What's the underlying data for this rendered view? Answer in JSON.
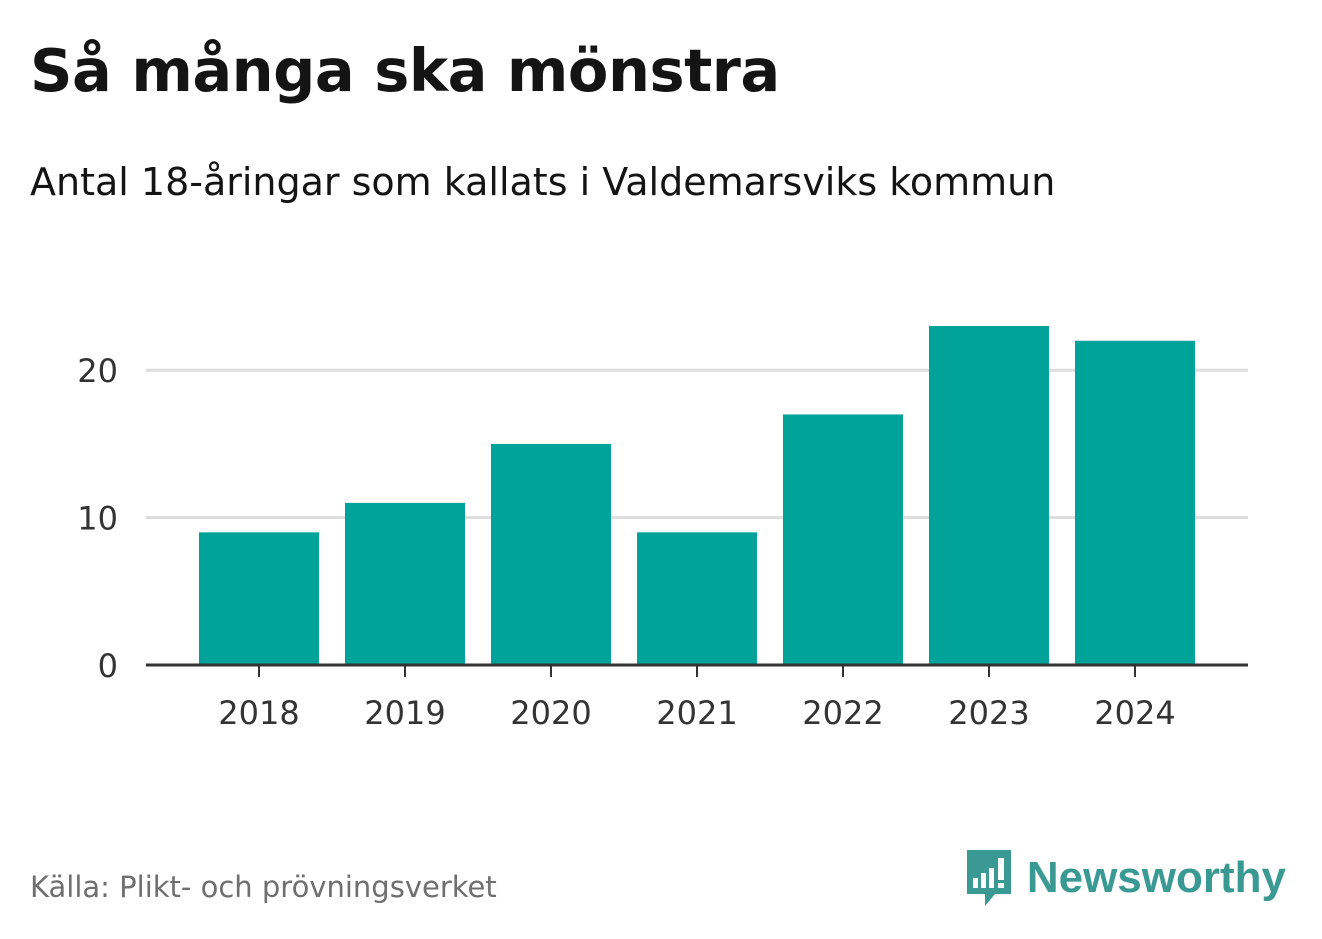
{
  "chart_data": {
    "type": "bar",
    "title": "Så många ska mönstra",
    "subtitle": "Antal 18-åringar som kallats i Valdemarsviks kommun",
    "categories": [
      "2018",
      "2019",
      "2020",
      "2021",
      "2022",
      "2023",
      "2024"
    ],
    "values": [
      9,
      11,
      15,
      9,
      17,
      23,
      22
    ],
    "xlabel": "",
    "ylabel": "",
    "ylim": [
      0,
      23
    ],
    "yticks": [
      0,
      10,
      20
    ],
    "grid": true,
    "bar_color": "#00a39a"
  },
  "source": "Källa: Plikt- och prövningsverket",
  "brand": {
    "name": "Newsworthy",
    "icon": "newsworthy-logo-icon",
    "color": "#3a9a93"
  }
}
